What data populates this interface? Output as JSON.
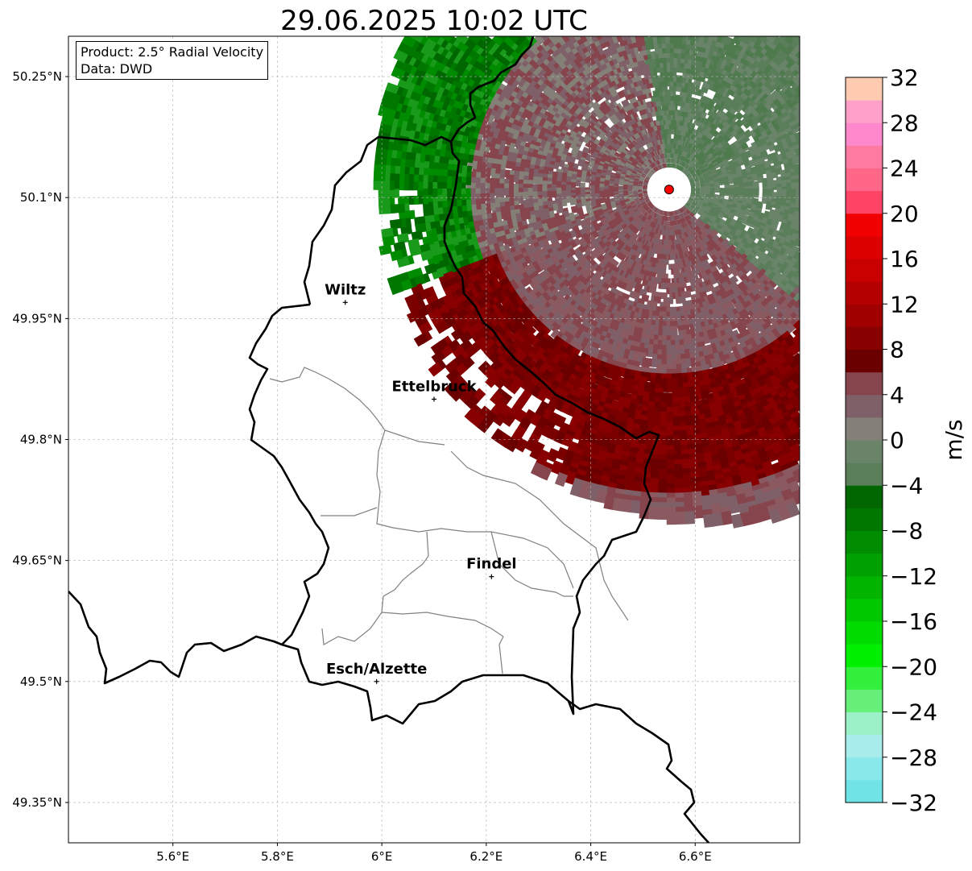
{
  "title": "29.06.2025 10:02 UTC",
  "info": {
    "product": "Product: 2.5° Radial Velocity",
    "data": "Data: DWD"
  },
  "map": {
    "lon_range": [
      5.4,
      6.8
    ],
    "lat_range": [
      49.3,
      50.3
    ],
    "lon_ticks": [
      {
        "value": 5.6,
        "label": "5.6°E"
      },
      {
        "value": 5.8,
        "label": "5.8°E"
      },
      {
        "value": 6.0,
        "label": "6°E"
      },
      {
        "value": 6.2,
        "label": "6.2°E"
      },
      {
        "value": 6.4,
        "label": "6.4°E"
      },
      {
        "value": 6.6,
        "label": "6.6°E"
      }
    ],
    "lat_ticks": [
      {
        "value": 50.25,
        "label": "50.25°N"
      },
      {
        "value": 50.1,
        "label": "50.1°N"
      },
      {
        "value": 49.95,
        "label": "49.95°N"
      },
      {
        "value": 49.8,
        "label": "49.8°N"
      },
      {
        "value": 49.65,
        "label": "49.65°N"
      },
      {
        "value": 49.5,
        "label": "49.5°N"
      },
      {
        "value": 49.35,
        "label": "49.35°N"
      }
    ],
    "radar_site": {
      "lon": 6.55,
      "lat": 50.11,
      "color": "#ff0000"
    },
    "cities": [
      {
        "name": "Wiltz",
        "lon": 5.93,
        "lat": 49.97
      },
      {
        "name": "Ettelbruck",
        "lon": 6.1,
        "lat": 49.85
      },
      {
        "name": "Findel",
        "lon": 6.21,
        "lat": 49.63
      },
      {
        "name": "Esch/Alzette",
        "lon": 5.99,
        "lat": 49.5
      }
    ]
  },
  "colorbar": {
    "label": "m/s",
    "min": -32,
    "max": 32,
    "ticks": [
      {
        "value": 32,
        "label": "32"
      },
      {
        "value": 28,
        "label": "28"
      },
      {
        "value": 24,
        "label": "24"
      },
      {
        "value": 20,
        "label": "20"
      },
      {
        "value": 16,
        "label": "16"
      },
      {
        "value": 12,
        "label": "12"
      },
      {
        "value": 8,
        "label": "8"
      },
      {
        "value": 4,
        "label": "4"
      },
      {
        "value": 0,
        "label": "0"
      },
      {
        "value": -4,
        "label": "−4"
      },
      {
        "value": -8,
        "label": "−8"
      },
      {
        "value": -12,
        "label": "−12"
      },
      {
        "value": -16,
        "label": "−16"
      },
      {
        "value": -20,
        "label": "−20"
      },
      {
        "value": -24,
        "label": "−24"
      },
      {
        "value": -28,
        "label": "−28"
      },
      {
        "value": -32,
        "label": "−32"
      }
    ],
    "colors": [
      "#6fe3e6",
      "#88e8ea",
      "#a8ecec",
      "#9cf0c8",
      "#66f07a",
      "#33f03c",
      "#00f000",
      "#00dc00",
      "#00c800",
      "#00b400",
      "#00a000",
      "#008c00",
      "#007800",
      "#006600",
      "#5a7d5a",
      "#6a846a",
      "#848078",
      "#7f6068",
      "#86444c",
      "#6a0000",
      "#880000",
      "#a00000",
      "#b40000",
      "#c80000",
      "#dc0000",
      "#f00000",
      "#ff4466",
      "#ff6688",
      "#ff7aa0",
      "#ff88cc",
      "#ffa0c8",
      "#ffcbb0"
    ]
  }
}
